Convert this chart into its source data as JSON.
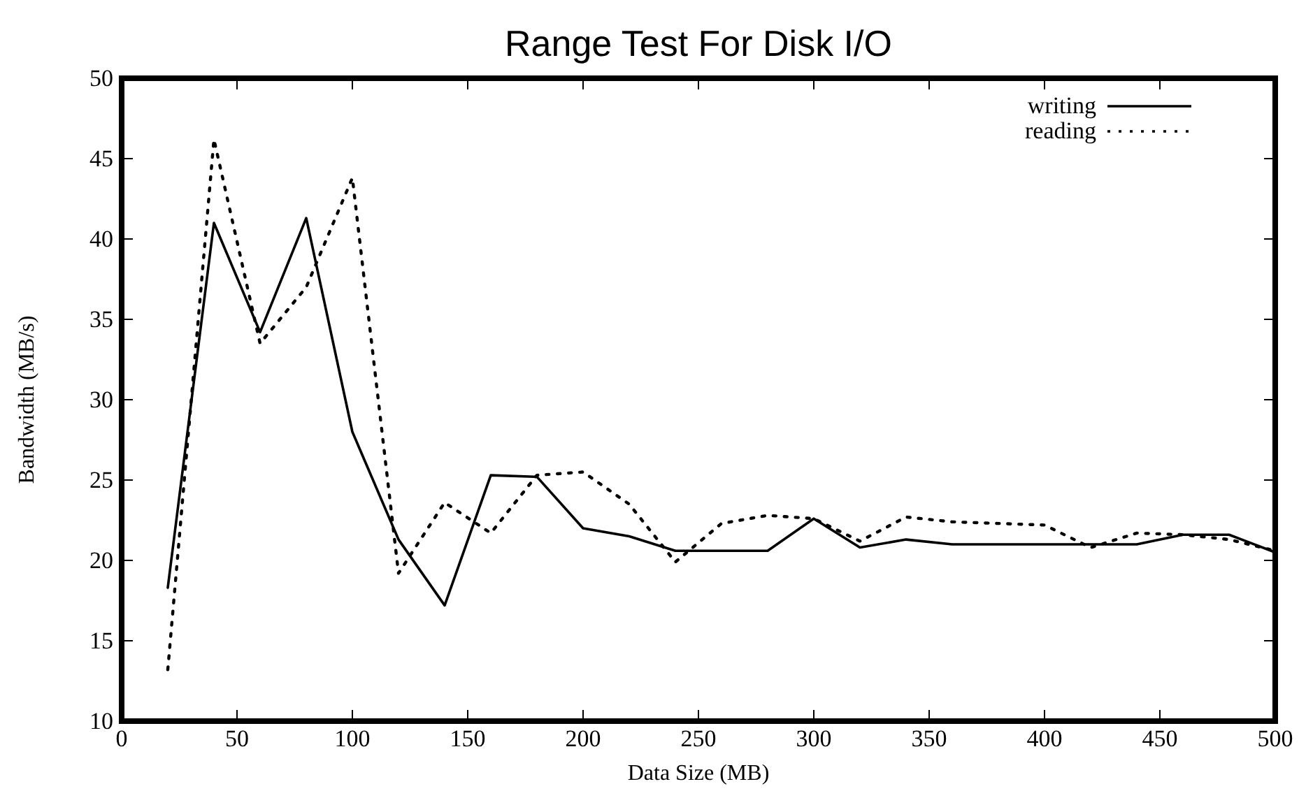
{
  "chart_data": {
    "type": "line",
    "title": "Range Test For Disk I/O",
    "xlabel": "Data Size (MB)",
    "ylabel": "Bandwidth (MB/s)",
    "x": [
      20,
      40,
      60,
      80,
      100,
      120,
      140,
      160,
      180,
      200,
      220,
      240,
      260,
      280,
      300,
      320,
      340,
      360,
      380,
      400,
      420,
      440,
      460,
      480,
      500
    ],
    "series": [
      {
        "name": "writing",
        "color": "#000000",
        "line_style": "solid",
        "values": [
          18.3,
          41,
          34.2,
          41.3,
          28,
          21.3,
          17.2,
          25.3,
          25.2,
          22,
          21.5,
          20.6,
          20.6,
          20.6,
          22.6,
          20.8,
          21.3,
          21,
          21,
          21,
          21,
          21,
          21.6,
          21.6,
          20.5
        ]
      },
      {
        "name": "reading",
        "color": "#000000",
        "line_style": "dotted",
        "values": [
          13.2,
          46.2,
          33.5,
          37,
          43.8,
          19.2,
          23.6,
          21.7,
          25.3,
          25.5,
          23.5,
          19.9,
          22.3,
          22.8,
          22.6,
          21.2,
          22.7,
          22.4,
          22.3,
          22.2,
          20.8,
          21.7,
          21.6,
          21.3,
          20.6
        ]
      }
    ],
    "xlim": [
      0,
      500
    ],
    "xticks": [
      0,
      50,
      100,
      150,
      200,
      250,
      300,
      350,
      400,
      450,
      500
    ],
    "ylim": [
      10,
      50
    ],
    "yticks": [
      10,
      15,
      20,
      25,
      30,
      35,
      40,
      45,
      50
    ],
    "grid": false,
    "legend": "top right",
    "marker": "none"
  }
}
